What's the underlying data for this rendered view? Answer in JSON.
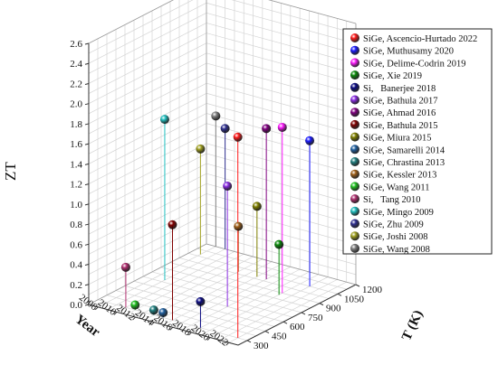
{
  "chart_data": {
    "type": "scatter",
    "title": "",
    "xlabel": "Year",
    "ylabel": "T (K)",
    "zlabel": "ZT",
    "xlim": [
      2007,
      2023
    ],
    "ylim": [
      225,
      1200
    ],
    "zlim": [
      0,
      2.6
    ],
    "x_ticks": [
      "2008",
      "2010",
      "2012",
      "2014",
      "2016",
      "2018",
      "2020",
      "2022"
    ],
    "y_ticks": [
      "300",
      "450",
      "600",
      "750",
      "900",
      "1050",
      "1200"
    ],
    "z_ticks": [
      "0.0",
      "0.2",
      "0.4",
      "0.6",
      "0.8",
      "1.0",
      "1.2",
      "1.4",
      "1.6",
      "1.8",
      "2.0",
      "2.2",
      "2.4",
      "2.6"
    ],
    "grid": true,
    "legend_position": "right",
    "series": [
      {
        "name": "SiGe, Ascencio-Hurtado 2022",
        "color": "#ff1a1a",
        "x": 2022,
        "y": 300,
        "z": 2.0
      },
      {
        "name": "SiGe, Muthusamy 2020",
        "color": "#1a1aff",
        "x": 2020,
        "y": 1050,
        "z": 1.45
      },
      {
        "name": "SiGe, Delime-Codrin 2019",
        "color": "#ff1aff",
        "x": 2019,
        "y": 900,
        "z": 1.65
      },
      {
        "name": "SiGe, Xie 2019",
        "color": "#0a8a0a",
        "x": 2019,
        "y": 873,
        "z": 0.5
      },
      {
        "name": "Si,   Banerjee 2018",
        "color": "#0a0a80",
        "x": 2018,
        "y": 300,
        "z": 0.26
      },
      {
        "name": "SiGe, Bathula 2017",
        "color": "#8a2be2",
        "x": 2017,
        "y": 600,
        "z": 1.2
      },
      {
        "name": "SiGe, Ahmad 2016",
        "color": "#800080",
        "x": 2016,
        "y": 1000,
        "z": 1.5
      },
      {
        "name": "SiGe, Bathula 2015",
        "color": "#800000",
        "x": 2015,
        "y": 300,
        "z": 0.95
      },
      {
        "name": "SiGe, Miura 2015",
        "color": "#808000",
        "x": 2015,
        "y": 1000,
        "z": 0.7
      },
      {
        "name": "SiGe, Samarelli 2014",
        "color": "#2060a0",
        "x": 2014,
        "y": 300,
        "z": 0.05
      },
      {
        "name": "SiGe, Chrastina 2013",
        "color": "#208080",
        "x": 2013,
        "y": 300,
        "z": 0.05
      },
      {
        "name": "SiGe, Kessler 2013",
        "color": "#a0601a",
        "x": 2013,
        "y": 1000,
        "z": 0.45
      },
      {
        "name": "SiGe, Wang 2011",
        "color": "#20c020",
        "x": 2011,
        "y": 300,
        "z": 0.05
      },
      {
        "name": "Si,   Tang 2010",
        "color": "#b03070",
        "x": 2010,
        "y": 300,
        "z": 0.4
      },
      {
        "name": "SiGe, Mingo 2009",
        "color": "#20c0c0",
        "x": 2009,
        "y": 700,
        "z": 1.6
      },
      {
        "name": "SiGe, Zhu 2009",
        "color": "#303090",
        "x": 2009,
        "y": 1200,
        "z": 1.2
      },
      {
        "name": "SiGe, Joshi 2008",
        "color": "#a0a020",
        "x": 2008,
        "y": 1073,
        "z": 1.05
      },
      {
        "name": "SiGe, Wang 2008",
        "color": "#808080",
        "x": 2008,
        "y": 1200,
        "z": 1.3
      }
    ]
  }
}
